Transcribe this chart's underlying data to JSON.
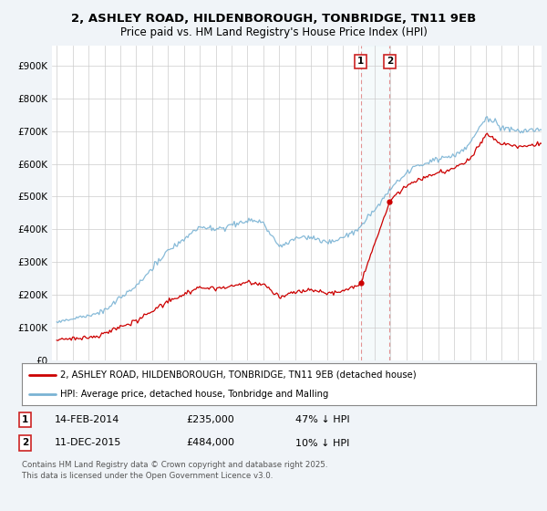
{
  "title_line1": "2, ASHLEY ROAD, HILDENBOROUGH, TONBRIDGE, TN11 9EB",
  "title_line2": "Price paid vs. HM Land Registry's House Price Index (HPI)",
  "ylabel_ticks": [
    "£0",
    "£100K",
    "£200K",
    "£300K",
    "£400K",
    "£500K",
    "£600K",
    "£700K",
    "£800K",
    "£900K"
  ],
  "ytick_vals": [
    0,
    100000,
    200000,
    300000,
    400000,
    500000,
    600000,
    700000,
    800000,
    900000
  ],
  "ylim": [
    0,
    960000
  ],
  "xlim_start": 1994.7,
  "xlim_end": 2025.5,
  "hpi_color": "#7ab3d4",
  "price_color": "#cc0000",
  "sale1_date": "14-FEB-2014",
  "sale1_price": 235000,
  "sale1_pct": "47% ↓ HPI",
  "sale1_year": 2014.12,
  "sale2_date": "11-DEC-2015",
  "sale2_price": 484000,
  "sale2_pct": "10% ↓ HPI",
  "sale2_year": 2015.95,
  "legend_line1": "2, ASHLEY ROAD, HILDENBOROUGH, TONBRIDGE, TN11 9EB (detached house)",
  "legend_line2": "HPI: Average price, detached house, Tonbridge and Malling",
  "footnote": "Contains HM Land Registry data © Crown copyright and database right 2025.\nThis data is licensed under the Open Government Licence v3.0.",
  "background_color": "#f0f4f8",
  "plot_bg_color": "#ffffff"
}
